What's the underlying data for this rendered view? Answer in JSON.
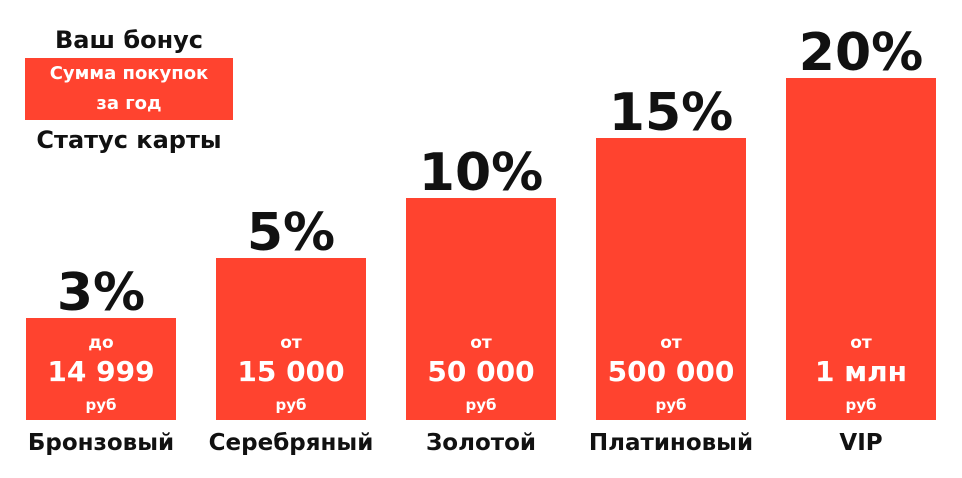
{
  "legend": {
    "bonus_label": "Ваш бонус",
    "sum_label_line1": "Сумма покупок",
    "sum_label_line2": "за год",
    "status_label": "Статус карты"
  },
  "colors": {
    "bar": "#FF432F",
    "text_dark": "#111111",
    "text_light": "#ffffff"
  },
  "chart_data": {
    "type": "bar",
    "title": "",
    "xlabel": "",
    "ylabel": "",
    "ylim": [
      0,
      20
    ],
    "categories": [
      "Бронзовый",
      "Серебряный",
      "Золотой",
      "Платиновый",
      "VIP"
    ],
    "values": [
      3,
      5,
      10,
      15,
      20
    ],
    "value_labels": [
      "3%",
      "5%",
      "10%",
      "15%",
      "20%"
    ],
    "threshold_prefix": [
      "до",
      "от",
      "от",
      "от",
      "от"
    ],
    "threshold_amount": [
      "14 999",
      "15 000",
      "50 000",
      "500 000",
      "1 млн"
    ],
    "threshold_unit": [
      "руб",
      "руб",
      "руб",
      "руб",
      "руб"
    ]
  }
}
